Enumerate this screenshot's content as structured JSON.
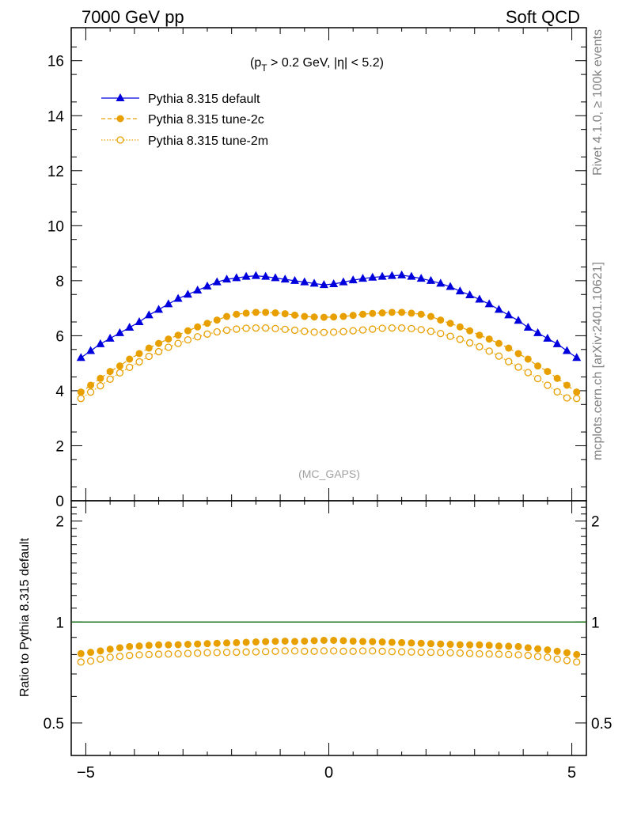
{
  "header": {
    "left": "7000 GeV pp",
    "right": "Soft QCD"
  },
  "side_labels": {
    "top": "Rivet 4.1.0, ≥ 100k events",
    "bottom": "mcplots.cern.ch [arXiv:2401.10621]"
  },
  "colors": {
    "default": "#0000dd",
    "tune2c": "#e8a000",
    "tune2m": "#e8a000",
    "ratio_line": "#006400"
  },
  "chart_data": [
    {
      "type": "line",
      "title": "(p_T > 0.2 GeV, |η| < 5.2)",
      "title_parts": {
        "pre": "(p",
        "sub": "T",
        "post": " > 0.2 GeV, |η| < 5.2)"
      },
      "watermark": "(MC_GAPS)",
      "xlabel": "",
      "ylabel": "",
      "xlim": [
        -5.3,
        5.3
      ],
      "ylim": [
        0,
        17.2
      ],
      "x_ticks": [
        -5,
        0,
        5
      ],
      "y_ticks": [
        0,
        2,
        4,
        6,
        8,
        10,
        12,
        14,
        16
      ],
      "x": [
        -5.1,
        -4.9,
        -4.7,
        -4.5,
        -4.3,
        -4.1,
        -3.9,
        -3.7,
        -3.5,
        -3.3,
        -3.1,
        -2.9,
        -2.7,
        -2.5,
        -2.3,
        -2.1,
        -1.9,
        -1.7,
        -1.5,
        -1.3,
        -1.1,
        -0.9,
        -0.7,
        -0.5,
        -0.3,
        -0.1,
        0.1,
        0.3,
        0.5,
        0.7,
        0.9,
        1.1,
        1.3,
        1.5,
        1.7,
        1.9,
        2.1,
        2.3,
        2.5,
        2.7,
        2.9,
        3.1,
        3.3,
        3.5,
        3.7,
        3.9,
        4.1,
        4.3,
        4.5,
        4.7,
        4.9,
        5.1
      ],
      "series": [
        {
          "name": "Pythia 8.315 default",
          "marker": "triangle-filled",
          "line": "solid",
          "values": [
            5.2,
            5.45,
            5.7,
            5.9,
            6.1,
            6.3,
            6.5,
            6.75,
            6.95,
            7.15,
            7.35,
            7.5,
            7.65,
            7.8,
            7.95,
            8.05,
            8.1,
            8.15,
            8.18,
            8.15,
            8.1,
            8.05,
            8.0,
            7.95,
            7.9,
            7.85,
            7.88,
            7.95,
            8.02,
            8.08,
            8.12,
            8.15,
            8.18,
            8.2,
            8.15,
            8.08,
            8.0,
            7.9,
            7.78,
            7.62,
            7.48,
            7.32,
            7.15,
            6.95,
            6.75,
            6.55,
            6.3,
            6.1,
            5.9,
            5.7,
            5.45,
            5.2
          ]
        },
        {
          "name": "Pythia 8.315 tune-2c",
          "marker": "circle-filled",
          "line": "dashed",
          "values": [
            3.95,
            4.2,
            4.45,
            4.7,
            4.9,
            5.15,
            5.35,
            5.55,
            5.72,
            5.88,
            6.02,
            6.18,
            6.32,
            6.45,
            6.57,
            6.7,
            6.78,
            6.82,
            6.85,
            6.85,
            6.83,
            6.8,
            6.75,
            6.7,
            6.68,
            6.67,
            6.68,
            6.7,
            6.74,
            6.78,
            6.81,
            6.83,
            6.85,
            6.85,
            6.82,
            6.78,
            6.7,
            6.57,
            6.45,
            6.32,
            6.18,
            6.02,
            5.88,
            5.72,
            5.55,
            5.35,
            5.15,
            4.9,
            4.7,
            4.45,
            4.2,
            3.95
          ]
        },
        {
          "name": "Pythia 8.315 tune-2m",
          "marker": "circle-open",
          "line": "dotted",
          "values": [
            3.72,
            3.95,
            4.18,
            4.42,
            4.65,
            4.85,
            5.05,
            5.25,
            5.42,
            5.58,
            5.72,
            5.85,
            5.96,
            6.06,
            6.14,
            6.2,
            6.24,
            6.27,
            6.28,
            6.28,
            6.26,
            6.23,
            6.2,
            6.16,
            6.13,
            6.12,
            6.13,
            6.15,
            6.18,
            6.21,
            6.24,
            6.27,
            6.28,
            6.28,
            6.26,
            6.22,
            6.16,
            6.08,
            5.98,
            5.87,
            5.74,
            5.6,
            5.44,
            5.26,
            5.06,
            4.86,
            4.66,
            4.44,
            4.2,
            3.96,
            3.74,
            3.72
          ]
        }
      ]
    },
    {
      "type": "line",
      "title": "",
      "xlabel": "",
      "ylabel": "Ratio to Pythia 8.315 default",
      "yscale": "log",
      "xlim": [
        -5.3,
        5.3
      ],
      "ylim": [
        0.4,
        2.3
      ],
      "x_ticks": [
        -5,
        0,
        5
      ],
      "x_tick_labels": [
        "−5",
        "0",
        "5"
      ],
      "y_ticks": [
        0.5,
        1,
        2
      ],
      "y_tick_labels": [
        "0.5",
        "1",
        "2"
      ],
      "reference_value": 1.0,
      "x": [
        -5.1,
        -4.9,
        -4.7,
        -4.5,
        -4.3,
        -4.1,
        -3.9,
        -3.7,
        -3.5,
        -3.3,
        -3.1,
        -2.9,
        -2.7,
        -2.5,
        -2.3,
        -2.1,
        -1.9,
        -1.7,
        -1.5,
        -1.3,
        -1.1,
        -0.9,
        -0.7,
        -0.5,
        -0.3,
        -0.1,
        0.1,
        0.3,
        0.5,
        0.7,
        0.9,
        1.1,
        1.3,
        1.5,
        1.7,
        1.9,
        2.1,
        2.3,
        2.5,
        2.7,
        2.9,
        3.1,
        3.3,
        3.5,
        3.7,
        3.9,
        4.1,
        4.3,
        4.5,
        4.7,
        4.9,
        5.1
      ],
      "series": [
        {
          "name": "Pythia 8.315 tune-2c",
          "marker": "circle-filled",
          "values": [
            0.805,
            0.812,
            0.82,
            0.83,
            0.838,
            0.845,
            0.848,
            0.852,
            0.855,
            0.855,
            0.856,
            0.858,
            0.86,
            0.862,
            0.864,
            0.866,
            0.868,
            0.87,
            0.872,
            0.874,
            0.876,
            0.877,
            0.875,
            0.877,
            0.88,
            0.882,
            0.882,
            0.88,
            0.877,
            0.875,
            0.874,
            0.872,
            0.87,
            0.868,
            0.866,
            0.864,
            0.862,
            0.86,
            0.858,
            0.856,
            0.855,
            0.855,
            0.852,
            0.848,
            0.847,
            0.845,
            0.838,
            0.832,
            0.826,
            0.818,
            0.81,
            0.8
          ]
        },
        {
          "name": "Pythia 8.315 tune-2m",
          "marker": "circle-open",
          "values": [
            0.76,
            0.765,
            0.775,
            0.785,
            0.79,
            0.795,
            0.798,
            0.8,
            0.802,
            0.803,
            0.804,
            0.806,
            0.808,
            0.81,
            0.811,
            0.812,
            0.813,
            0.814,
            0.815,
            0.816,
            0.818,
            0.82,
            0.82,
            0.818,
            0.818,
            0.82,
            0.82,
            0.818,
            0.818,
            0.82,
            0.82,
            0.818,
            0.816,
            0.815,
            0.814,
            0.813,
            0.812,
            0.811,
            0.81,
            0.808,
            0.806,
            0.804,
            0.803,
            0.802,
            0.8,
            0.798,
            0.795,
            0.79,
            0.785,
            0.775,
            0.768,
            0.76
          ]
        }
      ]
    }
  ]
}
